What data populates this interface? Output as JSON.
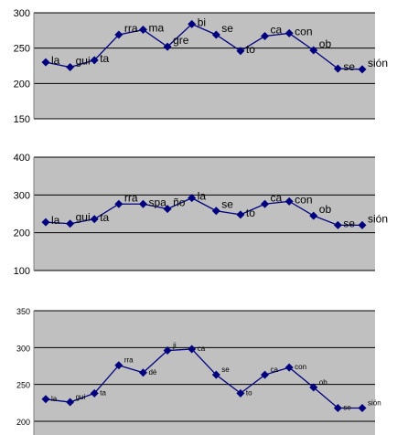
{
  "colors": {
    "plot_background": "#c0c0c0",
    "gridline": "#000000",
    "series_line": "#00007f",
    "marker": "#00007f"
  },
  "chart_data": [
    {
      "type": "line",
      "grid": true,
      "ylim": [
        150,
        300
      ],
      "yticks": [
        150,
        200,
        250,
        300
      ],
      "points": [
        {
          "label": "la",
          "y": 230
        },
        {
          "label": "gui",
          "y": 223
        },
        {
          "label": "ta",
          "y": 233
        },
        {
          "label": "rra",
          "y": 269
        },
        {
          "label": "ma",
          "y": 276
        },
        {
          "label": "gre",
          "y": 252
        },
        {
          "label": "bi",
          "y": 284
        },
        {
          "label": "se",
          "y": 269
        },
        {
          "label": "to",
          "y": 246
        },
        {
          "label": "ca",
          "y": 267
        },
        {
          "label": "con",
          "y": 271
        },
        {
          "label": "ob",
          "y": 247
        },
        {
          "label": "se",
          "y": 221
        },
        {
          "label": "sión",
          "y": 220
        }
      ]
    },
    {
      "type": "line",
      "grid": true,
      "ylim": [
        100,
        400
      ],
      "yticks": [
        100,
        200,
        300,
        400
      ],
      "points": [
        {
          "label": "la",
          "y": 228
        },
        {
          "label": "gui",
          "y": 224
        },
        {
          "label": "ta",
          "y": 236
        },
        {
          "label": "rra",
          "y": 276
        },
        {
          "label": "spa",
          "y": 276
        },
        {
          "label": "ño",
          "y": 263
        },
        {
          "label": "la",
          "y": 292
        },
        {
          "label": "se",
          "y": 258
        },
        {
          "label": "to",
          "y": 248
        },
        {
          "label": "ca",
          "y": 276
        },
        {
          "label": "con",
          "y": 283
        },
        {
          "label": "ob",
          "y": 245
        },
        {
          "label": "se",
          "y": 220
        },
        {
          "label": "sión",
          "y": 220
        }
      ]
    },
    {
      "type": "line",
      "grid": true,
      "ylim": [
        200,
        350
      ],
      "yticks": [
        200,
        250,
        300,
        350
      ],
      "points": [
        {
          "label": "la",
          "y": 230
        },
        {
          "label": "gui",
          "y": 226
        },
        {
          "label": "ta",
          "y": 238
        },
        {
          "label": "rra",
          "y": 276
        },
        {
          "label": "dé",
          "y": 266
        },
        {
          "label": "ji",
          "y": 296
        },
        {
          "label": "ca",
          "y": 298
        },
        {
          "label": "se",
          "y": 263
        },
        {
          "label": "to",
          "y": 238
        },
        {
          "label": "ca",
          "y": 263
        },
        {
          "label": "con",
          "y": 273
        },
        {
          "label": "ob",
          "y": 246
        },
        {
          "label": "se",
          "y": 218
        },
        {
          "label": "sión",
          "y": 218
        }
      ]
    }
  ]
}
